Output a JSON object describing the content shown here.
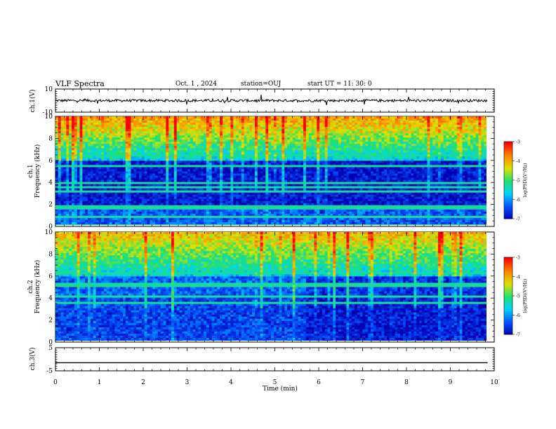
{
  "header": {
    "title": "VLF Spectra",
    "date": "Oct. 1  , 2024",
    "station": "station=OUJ",
    "start_ut": "start  UT  =   11: 30: 0"
  },
  "chart_data": [
    {
      "type": "line",
      "panel": "waveform-ch1",
      "ylabel": "ch.1(V)",
      "ylim": [
        -10,
        10
      ],
      "yticks": [
        10,
        -10
      ],
      "x": [
        0,
        10
      ],
      "series": [
        {
          "values": [
            0,
            0
          ]
        }
      ]
    },
    {
      "type": "heatmap",
      "panel": "spectrogram-ch1",
      "ylabel": "ch.1\nFrequency  (kHz)",
      "ylim": [
        0,
        10
      ],
      "yticks": [
        0,
        2,
        4,
        6,
        8,
        10
      ],
      "xlim": [
        0,
        10
      ],
      "colorbar": {
        "label": "log(PSD)(V²/Hz)",
        "range": [
          -7,
          -3
        ],
        "ticks": [
          -3,
          -4,
          -5,
          -6,
          -7
        ],
        "colors": [
          "#0000b0",
          "#0050ff",
          "#00d0ff",
          "#20e070",
          "#e0e000",
          "#ff8000",
          "#ff0000",
          "#ff3030",
          "#ffffff"
        ]
      }
    },
    {
      "type": "heatmap",
      "panel": "spectrogram-ch2",
      "ylabel": "ch.2\nFrequency  (kHz)",
      "ylim": [
        0,
        10
      ],
      "yticks": [
        0,
        2,
        4,
        6,
        8,
        10
      ],
      "xlim": [
        0,
        10
      ],
      "colorbar": {
        "label": "log(PSD)(V²/Hz)",
        "range": [
          -7,
          -3
        ],
        "ticks": [
          -3,
          -4,
          -5,
          -6,
          -7
        ],
        "colors": [
          "#0000b0",
          "#0050ff",
          "#00d0ff",
          "#20e070",
          "#e0e000",
          "#ff8000",
          "#ff0000",
          "#ff3030",
          "#ffffff"
        ]
      }
    },
    {
      "type": "line",
      "panel": "waveform-ch3",
      "ylabel": "ch.3(V)",
      "ylim": [
        -5,
        5
      ],
      "yticks": [
        5,
        -5
      ],
      "x": [
        0,
        9.85
      ],
      "series": [
        {
          "values": [
            -1.5,
            -1.5
          ]
        }
      ]
    }
  ],
  "xaxis": {
    "label": "Time  (min)",
    "ticks": [
      "0",
      "1",
      "2",
      "3",
      "4",
      "5",
      "6",
      "7",
      "8",
      "9",
      "10"
    ],
    "range": [
      0,
      10
    ]
  }
}
